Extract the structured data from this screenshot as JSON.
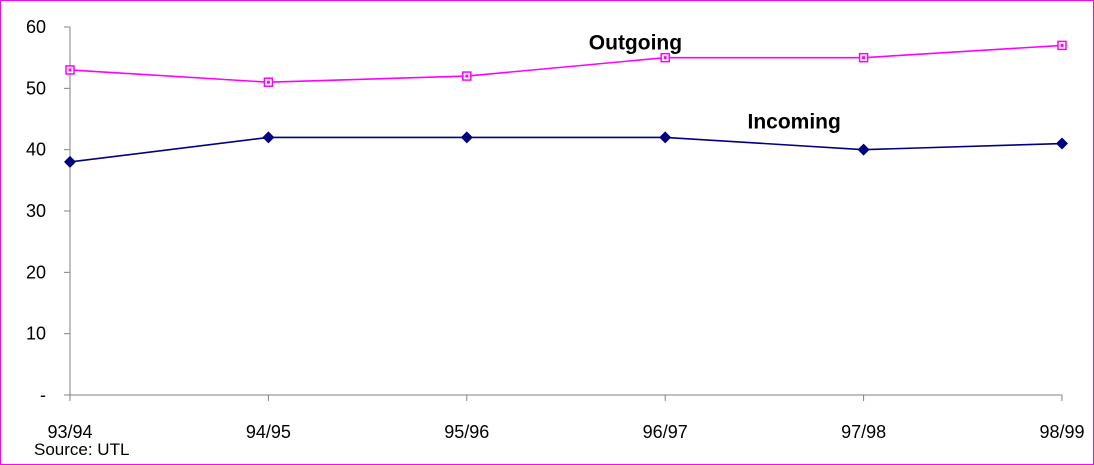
{
  "chart_data": {
    "type": "line",
    "categories": [
      "93/94",
      "94/95",
      "95/96",
      "96/97",
      "97/98",
      "98/99"
    ],
    "series": [
      {
        "name": "Outgoing",
        "values": [
          53,
          51,
          52,
          55,
          55,
          57
        ],
        "color": "#ff00ff",
        "marker": "square"
      },
      {
        "name": "Incoming",
        "values": [
          38,
          42,
          42,
          42,
          40,
          41
        ],
        "color": "#000080",
        "marker": "diamond"
      }
    ],
    "ylim": [
      0,
      60
    ],
    "y_tick_labels": [
      "-",
      "10",
      "20",
      "30",
      "40",
      "50",
      "60"
    ],
    "grid": false,
    "legend": "inline labels"
  },
  "source_note": "Source: UTL",
  "colors": {
    "frame": "#ff00ff",
    "axis": "#808080"
  }
}
